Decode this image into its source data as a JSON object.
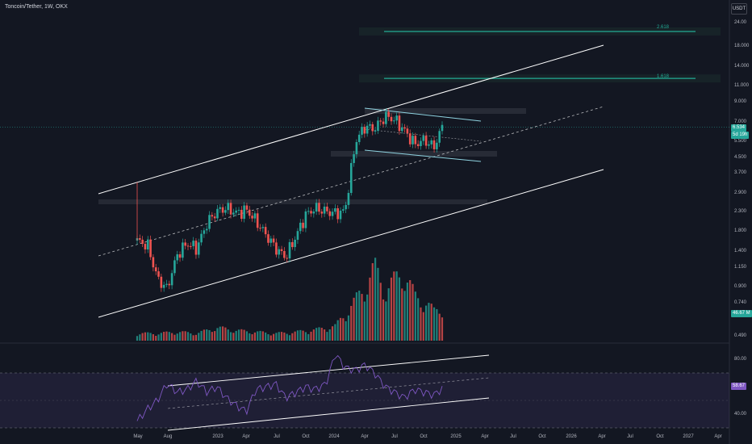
{
  "header": {
    "symbol_line": "Toncoin/Tether, 1W, OKX"
  },
  "toolbar": {
    "currency_label": "USDT"
  },
  "price_axis": {
    "ticks": [
      "24.00",
      "18.000",
      "14.000",
      "11.000",
      "9.000",
      "7.000",
      "5.500",
      "4.500",
      "3.700",
      "2.900",
      "2.300",
      "1.800",
      "1.400",
      "1.150",
      "0.900",
      "0.740",
      "0.490"
    ]
  },
  "rsi_axis": {
    "ticks": [
      "80.00",
      "40.00"
    ]
  },
  "time_axis": {
    "ticks": [
      "May",
      "Aug",
      "2023",
      "Apr",
      "Jul",
      "Oct",
      "2024",
      "Apr",
      "Jul",
      "Oct",
      "2025",
      "Apr",
      "Jul",
      "Oct",
      "2026",
      "Apr",
      "Jul",
      "Oct",
      "2027",
      "Apr"
    ]
  },
  "badges": {
    "last_price": "6.534",
    "countdown": "5d 19h",
    "volume": "46.67 M",
    "rsi": "58.67"
  },
  "fib_levels": {
    "level_2618": "2.618",
    "level_1618": "1.618"
  },
  "colors": {
    "background": "#131722",
    "up": "#26a69a",
    "down": "#ef5350",
    "rsi": "#7e57c2",
    "fib": "#22ab94",
    "channel": "#ffffff"
  },
  "chart_data": {
    "type": "candlestick",
    "title": "Toncoin/Tether, 1W, OKX",
    "price_scale": "log",
    "ylim": [
      0.49,
      24
    ],
    "price_series": [
      [
        2022.33,
        1.6
      ],
      [
        2022.42,
        1.5
      ],
      [
        2022.5,
        1.0
      ],
      [
        2022.58,
        0.88
      ],
      [
        2022.67,
        1.35
      ],
      [
        2022.75,
        1.55
      ],
      [
        2022.83,
        1.45
      ],
      [
        2022.92,
        2.0
      ],
      [
        2023.0,
        2.3
      ],
      [
        2023.08,
        2.4
      ],
      [
        2023.17,
        2.25
      ],
      [
        2023.25,
        2.35
      ],
      [
        2023.33,
        2.05
      ],
      [
        2023.42,
        1.7
      ],
      [
        2023.5,
        1.45
      ],
      [
        2023.58,
        1.3
      ],
      [
        2023.67,
        1.7
      ],
      [
        2023.75,
        2.2
      ],
      [
        2023.83,
        2.4
      ],
      [
        2023.92,
        2.3
      ],
      [
        2024.0,
        2.25
      ],
      [
        2024.08,
        2.3
      ],
      [
        2024.17,
        5.5
      ],
      [
        2024.25,
        6.6
      ],
      [
        2024.33,
        6.4
      ],
      [
        2024.42,
        7.5
      ],
      [
        2024.5,
        7.2
      ],
      [
        2024.58,
        6.3
      ],
      [
        2024.67,
        5.3
      ],
      [
        2024.75,
        5.6
      ],
      [
        2024.83,
        5.1
      ],
      [
        2024.9,
        6.53
      ]
    ],
    "volume_series": [
      [
        2022.33,
        0.1
      ],
      [
        2022.5,
        0.1
      ],
      [
        2022.67,
        0.12
      ],
      [
        2022.83,
        0.1
      ],
      [
        2023.0,
        0.18
      ],
      [
        2023.17,
        0.14
      ],
      [
        2023.33,
        0.12
      ],
      [
        2023.5,
        0.1
      ],
      [
        2023.67,
        0.12
      ],
      [
        2023.83,
        0.15
      ],
      [
        2024.0,
        0.2
      ],
      [
        2024.17,
        0.55
      ],
      [
        2024.25,
        0.75
      ],
      [
        2024.33,
        1.0
      ],
      [
        2024.42,
        0.7
      ],
      [
        2024.58,
        0.95
      ],
      [
        2024.67,
        0.6
      ],
      [
        2024.75,
        0.55
      ],
      [
        2024.83,
        0.4
      ],
      [
        2024.9,
        0.47
      ]
    ],
    "rsi_series": [
      [
        2022.33,
        35
      ],
      [
        2022.42,
        44
      ],
      [
        2022.5,
        50
      ],
      [
        2022.58,
        62
      ],
      [
        2022.67,
        56
      ],
      [
        2022.75,
        58
      ],
      [
        2022.83,
        64
      ],
      [
        2022.92,
        56
      ],
      [
        2023.0,
        60
      ],
      [
        2023.08,
        52
      ],
      [
        2023.17,
        46
      ],
      [
        2023.25,
        42
      ],
      [
        2023.33,
        58
      ],
      [
        2023.42,
        60
      ],
      [
        2023.5,
        62
      ],
      [
        2023.58,
        52
      ],
      [
        2023.67,
        56
      ],
      [
        2023.75,
        60
      ],
      [
        2023.83,
        58
      ],
      [
        2023.92,
        62
      ],
      [
        2024.0,
        84
      ],
      [
        2024.08,
        74
      ],
      [
        2024.17,
        72
      ],
      [
        2024.25,
        76
      ],
      [
        2024.33,
        70
      ],
      [
        2024.42,
        60
      ],
      [
        2024.5,
        56
      ],
      [
        2024.58,
        52
      ],
      [
        2024.67,
        58
      ],
      [
        2024.75,
        56
      ],
      [
        2024.83,
        54
      ],
      [
        2024.9,
        58.67
      ]
    ],
    "rsi_ylim": [
      30,
      90
    ],
    "rsi_levels": [
      70,
      30
    ],
    "last_price": 6.534,
    "fib_extension_levels": [
      {
        "ratio": "2.618",
        "price": 21.5
      },
      {
        "ratio": "1.618",
        "price": 12.0
      }
    ]
  }
}
